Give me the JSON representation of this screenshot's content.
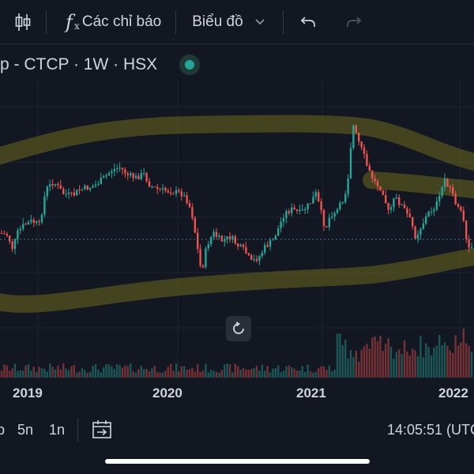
{
  "toolbar": {
    "indicators_label": "Các chỉ báo",
    "chart_type_label": "Biểu đồ",
    "icons": [
      "candles-icon",
      "function-fx-icon",
      "chevron-down-icon",
      "undo-icon",
      "redo-icon"
    ]
  },
  "symbol": {
    "title": "p - CTCP · 1W · HSX",
    "status_color": "#26a69a"
  },
  "xaxis": {
    "labels": [
      "2019",
      "2020",
      "2021",
      "2022"
    ]
  },
  "bottom": {
    "ranges": [
      "p",
      "5n",
      "1n"
    ],
    "time": "14:05:51 (UTC"
  },
  "colors": {
    "up": "#26a69a",
    "down": "#ef5350",
    "background": "#131722",
    "highlight": "#6b6a1e"
  },
  "chart_data": {
    "type": "candlestick",
    "timeframe": "1W",
    "x_axis_labels": [
      "2019",
      "2020",
      "2021",
      "2022"
    ]
  }
}
